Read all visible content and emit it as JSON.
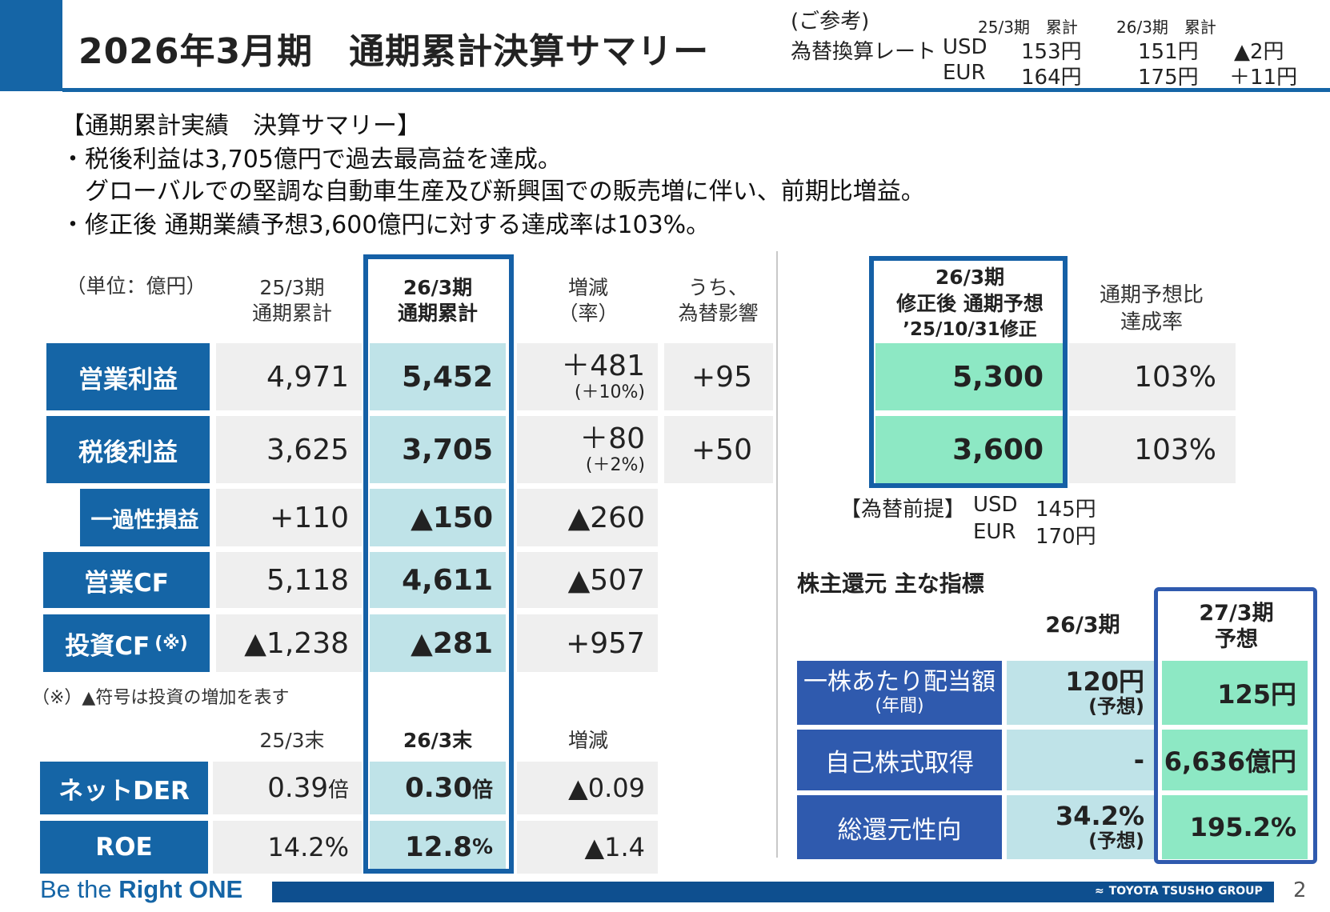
{
  "header": {
    "title": "2026年3月期　通期累計決算サマリー",
    "fx_ref": "(ご参考)",
    "fx_label": "為替換算レート",
    "fx_col1": "25/3期　累計",
    "fx_col2": "26/3期　累計",
    "fx_rows": [
      {
        "ccy": "USD",
        "v1": "153円",
        "v2": "151円",
        "diff": "▲2円"
      },
      {
        "ccy": "EUR",
        "v1": "164円",
        "v2": "175円",
        "diff": "＋11円"
      }
    ]
  },
  "summary": {
    "heading": "【通期累計実績　決算サマリー】",
    "lines": [
      "・税後利益は3,705億円で過去最高益を達成。",
      "　グローバルでの堅調な自動車生産及び新興国での販売増に伴い、前期比増益。",
      "・修正後 通期業績予想3,600億円に対する達成率は103%。"
    ]
  },
  "pl_table": {
    "unit": "（単位：億円）",
    "col_prev": [
      "25/3期",
      "通期累計"
    ],
    "col_curr": [
      "26/3期",
      "通期累計"
    ],
    "col_diff": [
      "増減",
      "（率）"
    ],
    "col_fx": [
      "うち、",
      "為替影響"
    ],
    "rows": [
      {
        "label": "営業利益",
        "prev": "4,971",
        "curr": "5,452",
        "diff": "＋481",
        "rate": "(＋10%)",
        "fx": "+95"
      },
      {
        "label": "税後利益",
        "prev": "3,625",
        "curr": "3,705",
        "diff": "＋80",
        "rate": "(＋2%)",
        "fx": "+50"
      },
      {
        "label": "一過性損益",
        "prev": "+110",
        "curr": "▲150",
        "diff": "▲260"
      },
      {
        "label": "営業CF",
        "prev": "5,118",
        "curr": "4,611",
        "diff": "▲507"
      },
      {
        "label": "投資CF",
        "label_note": "(※)",
        "prev": "▲1,238",
        "curr": "▲281",
        "diff": "+957"
      }
    ],
    "footnote": "（※）▲符号は投資の増加を表す"
  },
  "bs_table": {
    "col_prev": "25/3末",
    "col_curr": "26/3末",
    "col_diff": "増減",
    "rows": [
      {
        "label": "ネットDER",
        "prev": "0.39",
        "prev_unit": "倍",
        "curr": "0.30",
        "curr_unit": "倍",
        "diff": "▲0.09"
      },
      {
        "label": "ROE",
        "prev": "14.2%",
        "curr": "12.8",
        "curr_unit": "%",
        "diff": "▲1.4"
      }
    ]
  },
  "forecast": {
    "header": [
      "26/3期",
      "修正後 通期予想",
      "’25/10/31修正"
    ],
    "ratio_header": [
      "通期予想比",
      "達成率"
    ],
    "rows": [
      {
        "value": "5,300",
        "ratio": "103%"
      },
      {
        "value": "3,600",
        "ratio": "103%"
      }
    ],
    "fx_premise_label": "【為替前提】",
    "fx_premise": [
      {
        "ccy": "USD",
        "rate": "145円"
      },
      {
        "ccy": "EUR",
        "rate": "170円"
      }
    ]
  },
  "shareholder": {
    "heading": "株主還元 主な指標",
    "col_curr": "26/3期",
    "col_next": [
      "27/3期",
      "予想"
    ],
    "rows": [
      {
        "label": "一株あたり配当額",
        "sub": "(年間)",
        "curr": "120円",
        "curr_sub": "(予想)",
        "next": "125円"
      },
      {
        "label": "自己株式取得",
        "curr": "-",
        "next": "6,636億円"
      },
      {
        "label": "総還元性向",
        "curr": "34.2%",
        "curr_sub": "(予想)",
        "next": "195.2%"
      }
    ]
  },
  "footer": {
    "slogan_a": "Be the ",
    "slogan_b": "Right ONE",
    "company": "TOYOTA TSUSHO GROUP",
    "page": "2"
  },
  "colors": {
    "brand_blue": "#1565a6",
    "highlight_teal": "#bfe3e8",
    "highlight_green": "#8de8c4",
    "cell_gray": "#efefef"
  }
}
